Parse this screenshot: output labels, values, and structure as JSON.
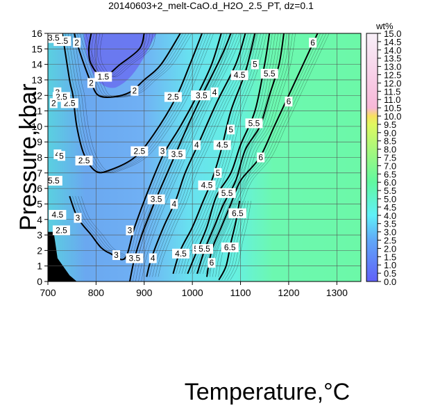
{
  "chart_data": {
    "type": "contour",
    "title": "20140603+2_melt-CaO.d_H2O_2.5_PT, dz=0.1",
    "xlabel": "Temperature,°C",
    "ylabel": "Pressure,kbar",
    "xlim": [
      700,
      1350
    ],
    "ylim": [
      0,
      16
    ],
    "xticks": [
      700,
      800,
      900,
      1000,
      1100,
      1200,
      1300
    ],
    "yticks": [
      0,
      1,
      2,
      3,
      4,
      5,
      6,
      7,
      8,
      9,
      10,
      11,
      12,
      13,
      14,
      15,
      16
    ],
    "grid": true,
    "colorbar": {
      "label": "wt%",
      "range": [
        0.0,
        15.0
      ],
      "ticks": [
        "0.0",
        "0.5",
        "1.0",
        "1.5",
        "2.0",
        "2.5",
        "3.0",
        "3.5",
        "4.0",
        "4.5",
        "5.0",
        "5.5",
        "6.0",
        "6.5",
        "7.0",
        "7.5",
        "8.0",
        "8.5",
        "9.0",
        "9.5",
        "10.0",
        "10.5",
        "11.0",
        "11.5",
        "12.0",
        "12.5",
        "13.0",
        "13.5",
        "14.0",
        "14.5",
        "15.0"
      ],
      "stops": [
        {
          "value": 0.0,
          "color": "#6060f8"
        },
        {
          "value": 2.5,
          "color": "#60a8f8"
        },
        {
          "value": 4.0,
          "color": "#60f0f8"
        },
        {
          "value": 6.0,
          "color": "#60f8a0"
        },
        {
          "value": 9.5,
          "color": "#e0f860"
        },
        {
          "value": 10.0,
          "color": "#f8e060"
        },
        {
          "value": 10.5,
          "color": "#f8b8d8"
        },
        {
          "value": 12.5,
          "color": "#f8d0e8"
        },
        {
          "value": 15.0,
          "color": "#f8f0f8"
        }
      ]
    },
    "contours": [
      {
        "level": "1.5",
        "points": [
          [
            790,
            16
          ],
          [
            785,
            15
          ],
          [
            790,
            14
          ],
          [
            815,
            13.2
          ],
          [
            850,
            14
          ],
          [
            890,
            15
          ],
          [
            900,
            16
          ]
        ],
        "labels": [
          [
            815,
            13.2
          ]
        ]
      },
      {
        "level": "2",
        "points": [
          [
            755,
            16
          ],
          [
            760,
            15.4
          ],
          [
            775,
            14
          ],
          [
            790,
            12.8
          ],
          [
            805,
            12
          ],
          [
            835,
            11.9
          ],
          [
            870,
            12.2
          ],
          [
            900,
            13
          ],
          [
            935,
            14
          ],
          [
            975,
            16
          ]
        ],
        "labels": [
          [
            760,
            15.4
          ],
          [
            790,
            12.8
          ],
          [
            880,
            12.3
          ]
        ]
      },
      {
        "level": "2.5",
        "points": [
          [
            730,
            16
          ],
          [
            745,
            13
          ],
          [
            752,
            12
          ],
          [
            760,
            10
          ],
          [
            775,
            8.2
          ],
          [
            800,
            7.1
          ],
          [
            830,
            7.2
          ],
          [
            880,
            8
          ],
          [
            920,
            9.5
          ],
          [
            965,
            11.8
          ],
          [
            995,
            14
          ],
          [
            1020,
            16
          ]
        ],
        "labels": [
          [
            730,
            15.5
          ],
          [
            745,
            11.5
          ],
          [
            775,
            7.8
          ],
          [
            890,
            8.4
          ],
          [
            960,
            11.9
          ]
        ]
      },
      {
        "level": "3",
        "points": [
          [
            745,
            5.5
          ],
          [
            762,
            4.1
          ],
          [
            790,
            3
          ],
          [
            810,
            2.2
          ],
          [
            830,
            1.8
          ],
          [
            860,
            1.5
          ],
          [
            880,
            3.5
          ],
          [
            910,
            6
          ],
          [
            940,
            8.2
          ],
          [
            975,
            10
          ],
          [
            1010,
            12
          ],
          [
            1040,
            14
          ],
          [
            1060,
            16
          ]
        ],
        "labels": [
          [
            762,
            4.1
          ],
          [
            842,
            1.7
          ],
          [
            870,
            3.3
          ],
          [
            938,
            8.4
          ],
          [
            1005,
            12.0
          ]
        ]
      },
      {
        "level": "3.5",
        "points": [
          [
            870,
            0
          ],
          [
            880,
            1.5
          ],
          [
            895,
            3
          ],
          [
            920,
            5
          ],
          [
            955,
            7.5
          ],
          [
            990,
            10
          ],
          [
            1020,
            12
          ],
          [
            1060,
            14.5
          ],
          [
            1080,
            16
          ]
        ],
        "labels": [
          [
            880,
            1.5
          ],
          [
            925,
            5.3
          ],
          [
            968,
            8.2
          ],
          [
            1019,
            12.0
          ]
        ]
      },
      {
        "level": "4",
        "points": [
          [
            905,
            0.3
          ],
          [
            915,
            1.5
          ],
          [
            940,
            3.5
          ],
          [
            965,
            5.2
          ],
          [
            985,
            7
          ],
          [
            1010,
            8.7
          ],
          [
            1050,
            11.5
          ],
          [
            1090,
            14
          ],
          [
            1110,
            16
          ]
        ],
        "labels": [
          [
            918,
            1.5
          ],
          [
            962,
            5.0
          ],
          [
            1009,
            8.8
          ],
          [
            1046,
            12.2
          ]
        ]
      },
      {
        "level": "4.5",
        "points": [
          [
            960,
            0.5
          ],
          [
            975,
            2
          ],
          [
            1000,
            3.5
          ],
          [
            1020,
            5
          ],
          [
            1040,
            6.5
          ],
          [
            1060,
            8.5
          ],
          [
            1080,
            11
          ],
          [
            1110,
            13.5
          ],
          [
            1130,
            16
          ]
        ],
        "labels": [
          [
            976,
            1.8
          ],
          [
            1030,
            6.2
          ],
          [
            1062,
            8.8
          ],
          [
            1098,
            13.3
          ]
        ]
      },
      {
        "level": "5",
        "points": [
          [
            990,
            0.5
          ],
          [
            1010,
            2
          ],
          [
            1030,
            3.5
          ],
          [
            1050,
            5.5
          ],
          [
            1080,
            7
          ],
          [
            1100,
            8.8
          ],
          [
            1130,
            11
          ],
          [
            1150,
            14
          ],
          [
            1160,
            16
          ]
        ],
        "labels": [
          [
            1008,
            2.1
          ],
          [
            1053,
            7.0
          ],
          [
            1080,
            9.8
          ],
          [
            1130,
            14.0
          ]
        ]
      },
      {
        "level": "5.5",
        "points": [
          [
            1010,
            0.5
          ],
          [
            1025,
            2
          ],
          [
            1045,
            3.5
          ],
          [
            1065,
            5
          ],
          [
            1090,
            6.5
          ],
          [
            1110,
            8.5
          ],
          [
            1140,
            10
          ],
          [
            1160,
            12
          ],
          [
            1180,
            14
          ],
          [
            1190,
            16
          ]
        ],
        "labels": [
          [
            1025,
            2.1
          ],
          [
            1072,
            5.7
          ],
          [
            1128,
            10.2
          ],
          [
            1160,
            13.4
          ]
        ]
      },
      {
        "level": "6",
        "points": [
          [
            1030,
            0.3
          ],
          [
            1040,
            2
          ],
          [
            1060,
            3.5
          ],
          [
            1080,
            5
          ],
          [
            1100,
            6.5
          ],
          [
            1140,
            8
          ],
          [
            1170,
            10
          ],
          [
            1200,
            12
          ],
          [
            1230,
            14
          ],
          [
            1260,
            16
          ]
        ],
        "labels": [
          [
            1040,
            1.2
          ],
          [
            1083,
            4.4
          ],
          [
            1142,
            8.0
          ],
          [
            1200,
            11.6
          ],
          [
            1250,
            15.4
          ]
        ]
      },
      {
        "level": "6.5",
        "points": [
          [
            1055,
            0.1
          ],
          [
            1070,
            1
          ],
          [
            1080,
            2.5
          ],
          [
            1090,
            3.8
          ],
          [
            1098,
            5.2
          ]
        ],
        "labels": [
          [
            1078,
            2.2
          ],
          [
            1094,
            4.4
          ]
        ]
      }
    ],
    "contour_left_labels": [
      "3.5",
      "3",
      "2.5",
      "2",
      "4",
      "5",
      "5.5",
      "4.5",
      "2.5"
    ]
  }
}
